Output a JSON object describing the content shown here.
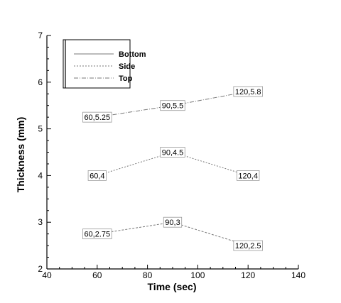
{
  "chart_data": {
    "type": "line",
    "xlabel": "Time (sec)",
    "ylabel": "Thickness (mm)",
    "xlim": [
      40,
      140
    ],
    "ylim": [
      2,
      7
    ],
    "xticks": [
      "40",
      "60",
      "80",
      "100",
      "120",
      "140"
    ],
    "yticks": [
      "2",
      "3",
      "4",
      "5",
      "6",
      "7"
    ],
    "grid": false,
    "legend_placement": "top-left",
    "legend": [
      {
        "name": "Bottom",
        "style": "solid"
      },
      {
        "name": "Side",
        "style": "dashed"
      },
      {
        "name": "Top",
        "style": "dashdot"
      }
    ],
    "series": [
      {
        "name": "Bottom",
        "dash": "3,2",
        "points": [
          {
            "x": 60,
            "y": 2.75,
            "label": "60,2.75"
          },
          {
            "x": 90,
            "y": 3.0,
            "label": "90,3"
          },
          {
            "x": 120,
            "y": 2.5,
            "label": "120,2.5"
          }
        ]
      },
      {
        "name": "Side",
        "dash": "2,2",
        "points": [
          {
            "x": 60,
            "y": 4.0,
            "label": "60,4"
          },
          {
            "x": 90,
            "y": 4.5,
            "label": "90,4.5"
          },
          {
            "x": 120,
            "y": 4.0,
            "label": "120,4"
          }
        ]
      },
      {
        "name": "Top",
        "dash": "6,2,1,2",
        "points": [
          {
            "x": 60,
            "y": 5.25,
            "label": "60,5.25"
          },
          {
            "x": 90,
            "y": 5.5,
            "label": "90,5.5"
          },
          {
            "x": 120,
            "y": 5.8,
            "label": "120,5.8"
          }
        ]
      }
    ]
  }
}
